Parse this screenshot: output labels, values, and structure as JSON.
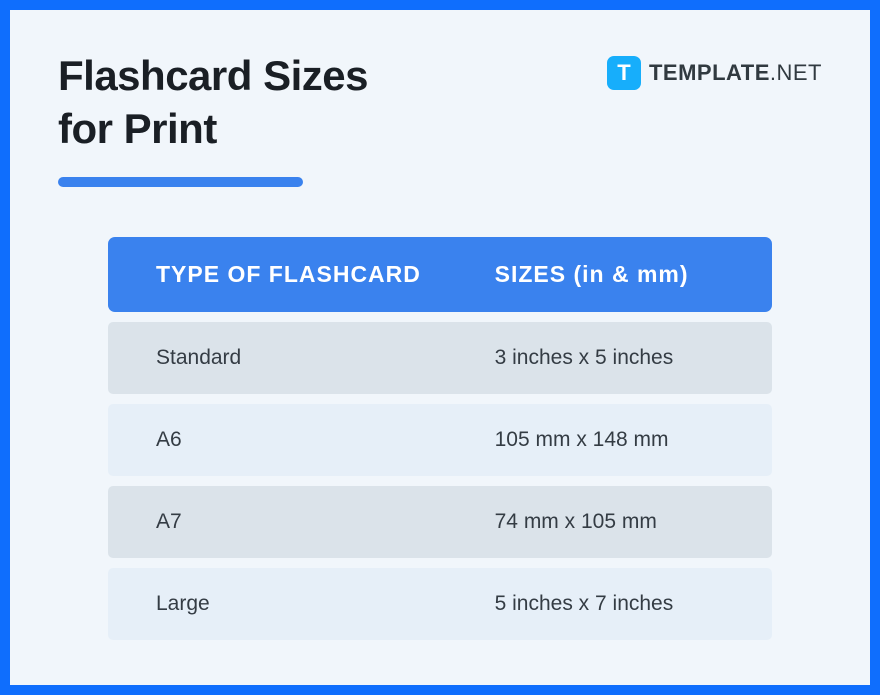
{
  "title": "Flashcard Sizes\nfor Print",
  "brand": {
    "icon_letter": "T",
    "name_main": "TEMPLATE",
    "name_suffix": ".NET"
  },
  "table": {
    "type": "table",
    "columns": [
      "TYPE OF FLASHCARD",
      "SIZES (in & mm)"
    ],
    "rows": [
      {
        "type": "Standard",
        "size": "3 inches x 5 inches"
      },
      {
        "type": "A6",
        "size": "105 mm x 148 mm"
      },
      {
        "type": "A7",
        "size": "74 mm x 105 mm"
      },
      {
        "type": "Large",
        "size": "5 inches x 7 inches"
      }
    ]
  },
  "styling": {
    "border_color": "#0f6efd",
    "background_color": "#f1f6fb",
    "title_color": "#1a1f25",
    "title_fontsize": 42,
    "brand_icon_bg": "#17aefb",
    "brand_text_color": "#313a40",
    "underline_color": "#3a82ee",
    "underline_width": 245,
    "underline_height": 10,
    "header_bg_color": "#3a82ee",
    "header_text_color": "#ffffff",
    "header_fontsize": 23,
    "row_odd_bg": "#dbe3ea",
    "row_even_bg": "#e6eff8",
    "cell_text_color": "#343c44",
    "cell_fontsize": 21,
    "row_gap": 10,
    "col_type_width_pct": 51,
    "col_size_width_pct": 49
  }
}
